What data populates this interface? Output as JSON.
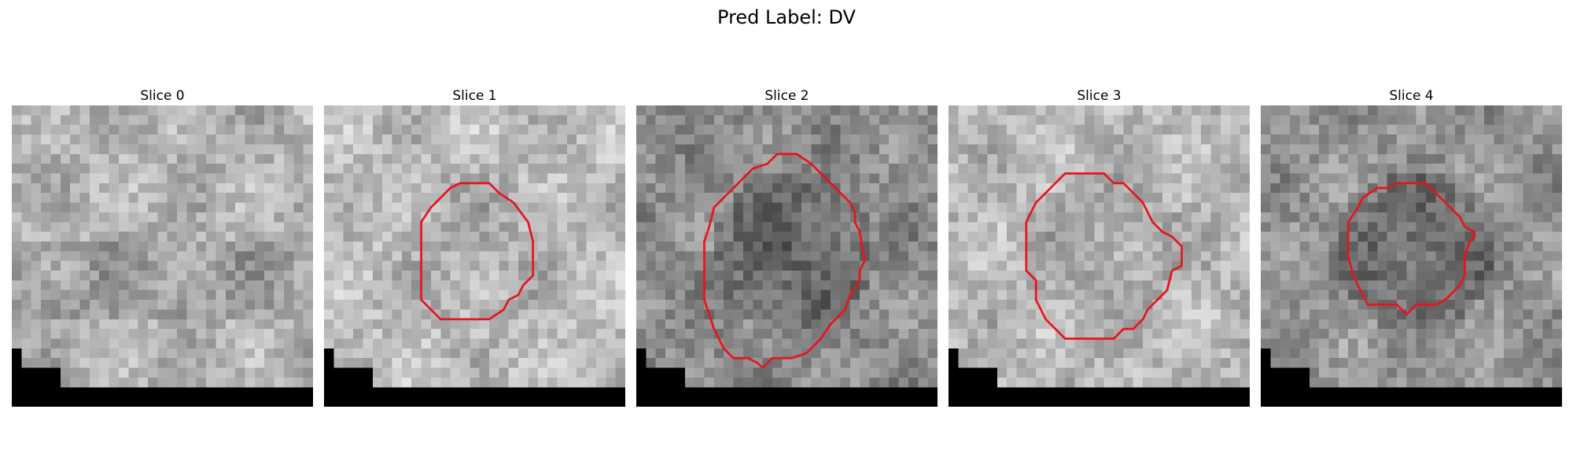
{
  "figure": {
    "title": "Pred Label: DV"
  },
  "panels": [
    {
      "title": "Slice 0",
      "seed": 11,
      "base": 0.7,
      "dark_center": 0.0,
      "has_contour": false
    },
    {
      "title": "Slice 1",
      "seed": 23,
      "base": 0.74,
      "dark_center": 0.06,
      "has_contour": true
    },
    {
      "title": "Slice 2",
      "seed": 37,
      "base": 0.55,
      "dark_center": 0.16,
      "has_contour": true
    },
    {
      "title": "Slice 3",
      "seed": 41,
      "base": 0.72,
      "dark_center": 0.06,
      "has_contour": true
    },
    {
      "title": "Slice 4",
      "seed": 53,
      "base": 0.58,
      "dark_center": 0.18,
      "has_contour": true
    }
  ],
  "colors": {
    "contour": "#e8141c",
    "mask": "#000000"
  }
}
